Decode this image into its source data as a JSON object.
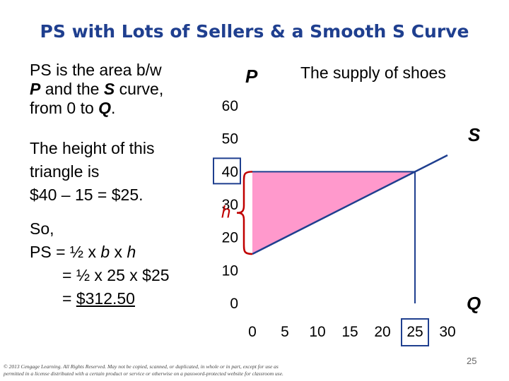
{
  "slide": {
    "title": "PS with Lots of Sellers & a Smooth S Curve",
    "left_text": {
      "l1": "PS is the area b/w",
      "l2_p": "P",
      "l2_mid": " and the ",
      "l2_s": "S",
      "l2_end": " curve,",
      "l3_a": "from 0 to ",
      "l3_q": "Q",
      "l3_end": ".",
      "h1": "The height of this",
      "h2": "triangle is",
      "h3": "$40 – 15 = $25.",
      "s1": "So,",
      "s2_a": "PS = ½ x ",
      "s2_b": "b",
      "s2_c": " x ",
      "s2_h": "h",
      "s3": "= ½ x 25 x $25",
      "s4_eq": "= ",
      "s4_val": "$312.50"
    },
    "footer_l1": "© 2013 Cengage Learning. All Rights Reserved. May not be copied, scanned, or duplicated, in whole or in part, except for use as",
    "footer_l2": "permitted in a license distributed with a certain product or service or otherwise on a password-protected website for classroom use.",
    "page_number": "25"
  },
  "chart_data": {
    "type": "line",
    "title": "The supply of shoes",
    "ylabel": "P",
    "xlabel": "Q",
    "xlim": [
      0,
      30
    ],
    "ylim": [
      0,
      60
    ],
    "x_ticks": [
      "0",
      "5",
      "10",
      "15",
      "20",
      "25",
      "30"
    ],
    "y_ticks": [
      "0",
      "10",
      "20",
      "30",
      "40",
      "50",
      "60"
    ],
    "series": [
      {
        "name": "S",
        "x": [
          0,
          25,
          30
        ],
        "y": [
          15,
          40,
          45
        ],
        "color": "#1f3f8f"
      }
    ],
    "price": 40,
    "quantity": 25,
    "height_label": "h",
    "shaded_color": "#ff99cc",
    "highlight_color": "#1f3f8f",
    "brace_color": "#c00000"
  }
}
